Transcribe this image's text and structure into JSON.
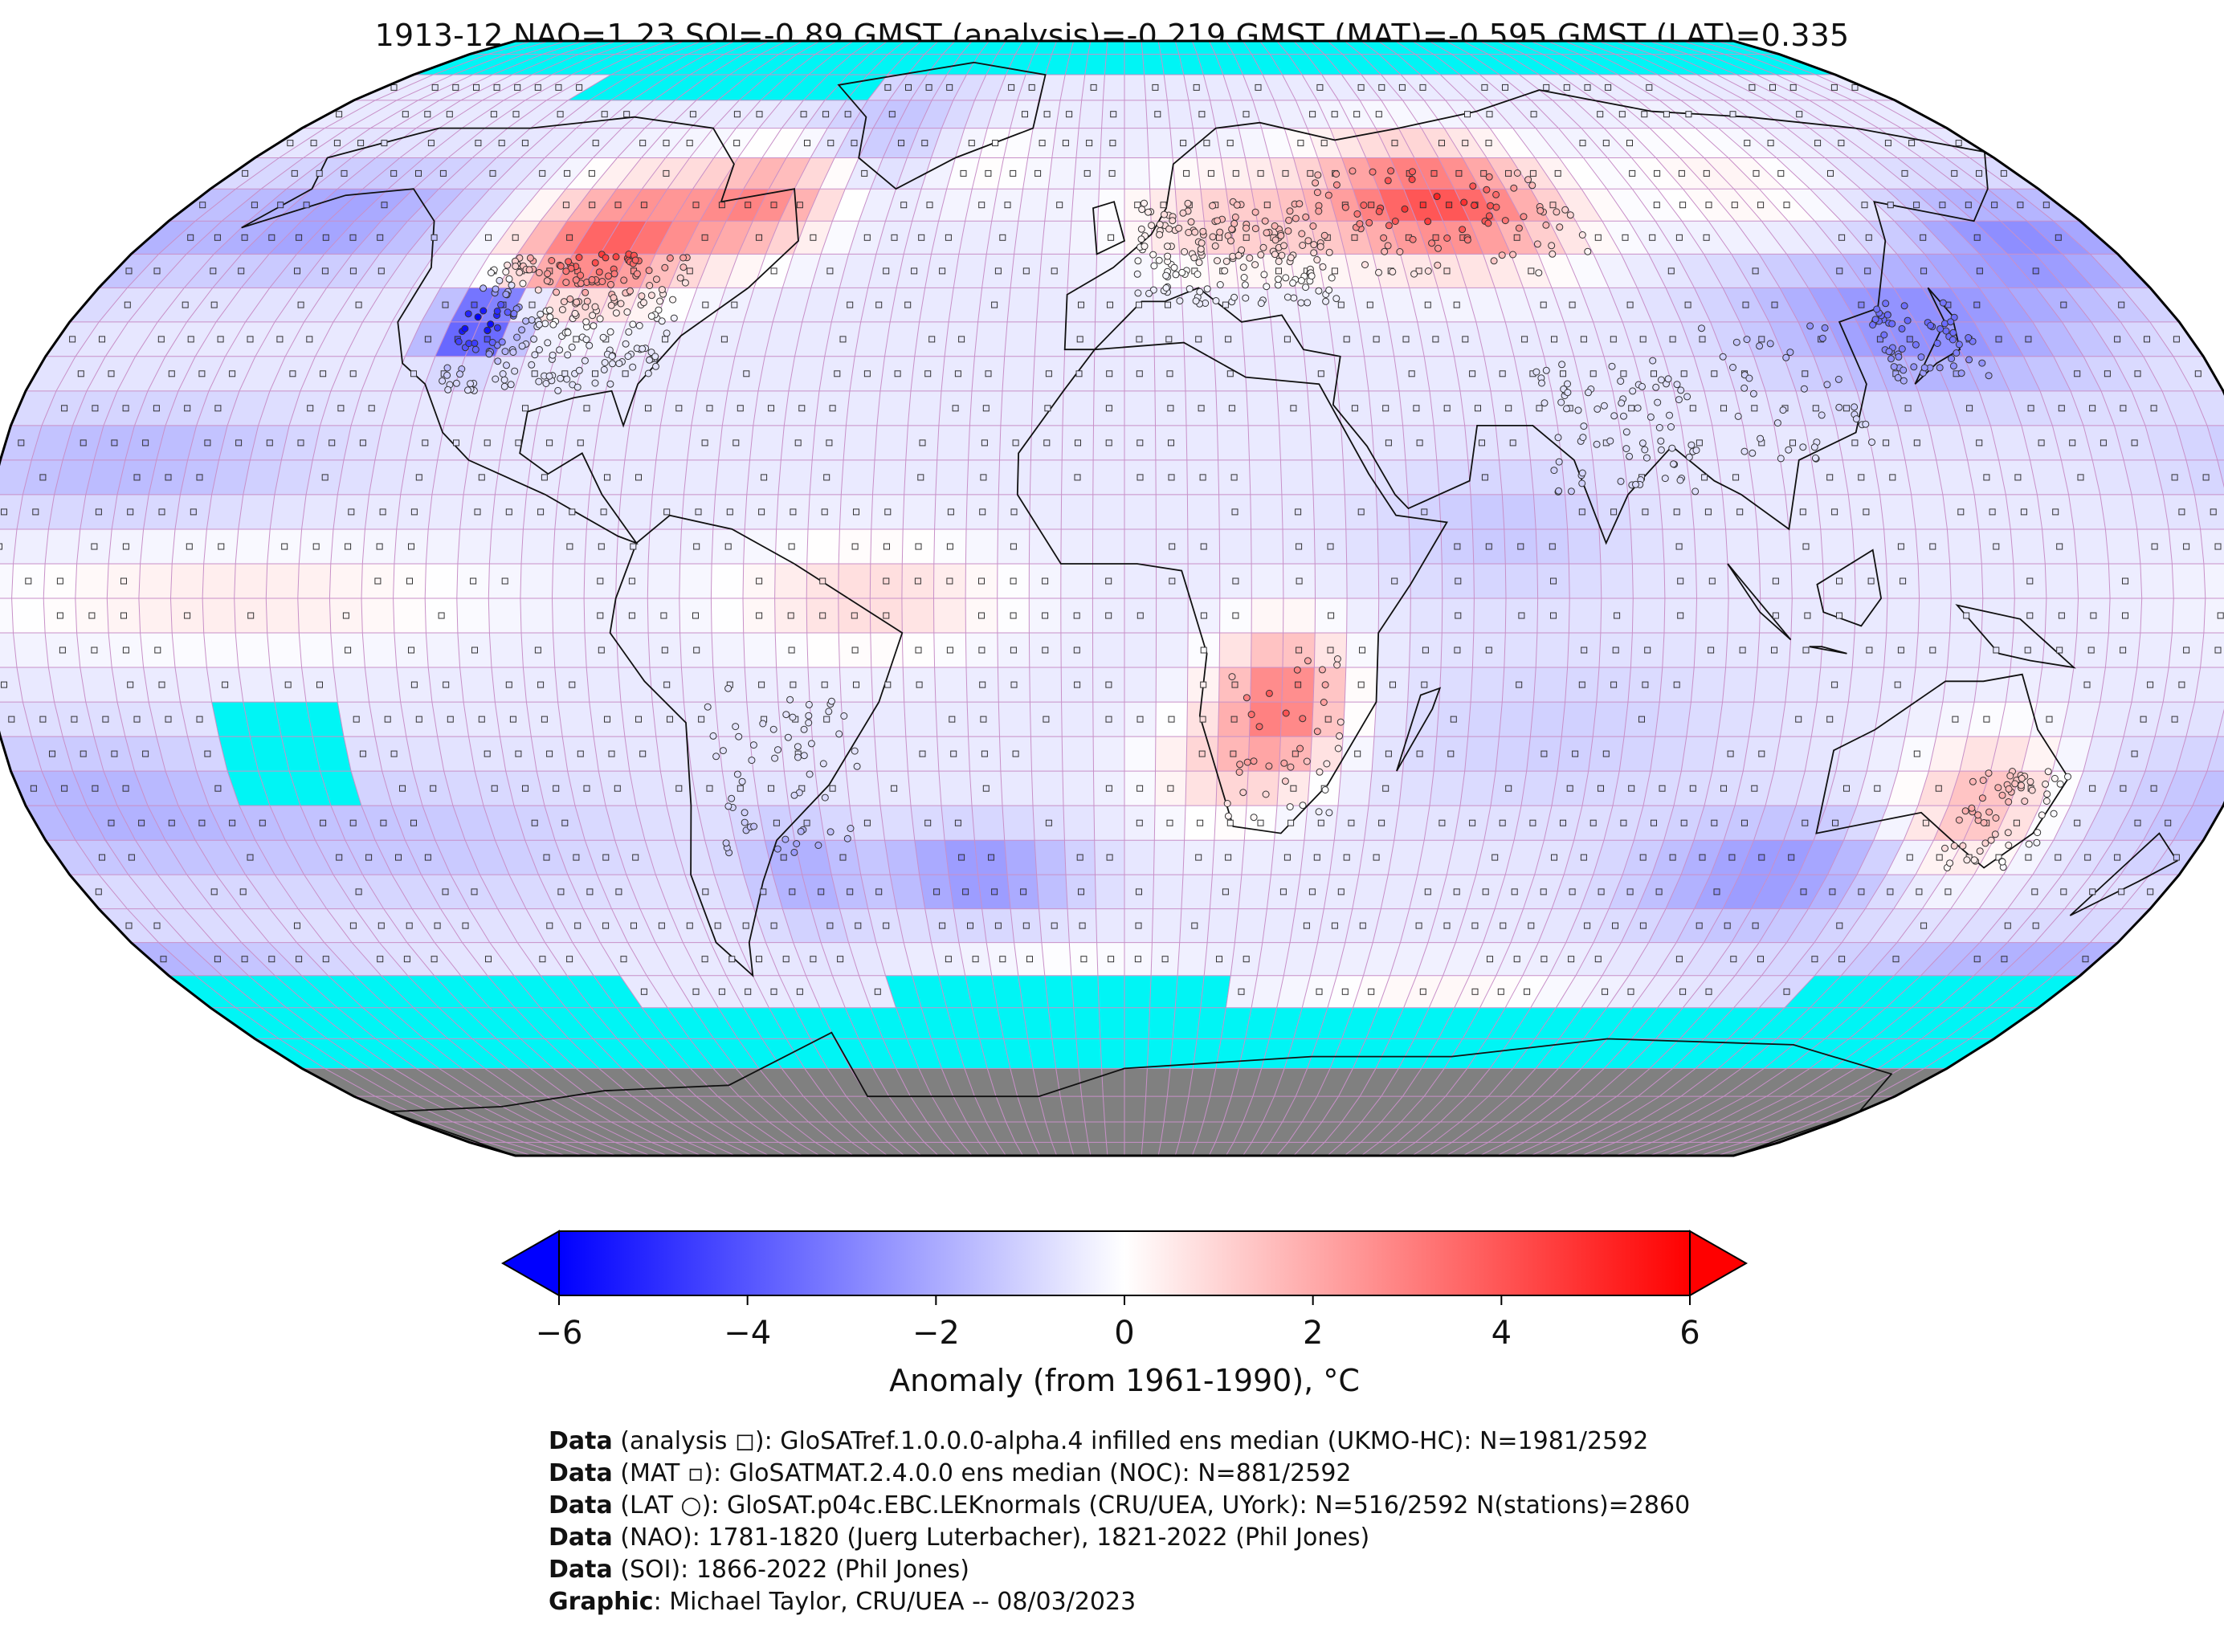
{
  "title": "1913-12 NAO=1.23 SOI=-0.89 GMST (analysis)=-0.219 GMST (MAT)=-0.595 GMST (LAT)=0.335",
  "colors": {
    "missing": "#00f5f5",
    "land_ice": "#808080",
    "cold_max": "#0000ff",
    "neutral": "#ffffff",
    "warm_max": "#ff0000",
    "grid_line": "#c890c8"
  },
  "map": {
    "projection": "Robinson",
    "grid_resolution_deg": 5,
    "marker_types": [
      "square",
      "small-square",
      "circle"
    ]
  },
  "colorbar": {
    "label": "Anomaly (from 1961-1990), °C",
    "min": -6,
    "max": 6,
    "ticks": [
      "−6",
      "−4",
      "−2",
      "0",
      "2",
      "4",
      "6"
    ],
    "tick_values": [
      -6,
      -4,
      -2,
      0,
      2,
      4,
      6
    ],
    "extend": "both"
  },
  "credits": [
    {
      "label": "Data",
      "text": " (analysis ◻): GloSATref.1.0.0.0-alpha.4 infilled ens median (UKMO-HC): N=1981/2592"
    },
    {
      "label": "Data",
      "text": " (MAT ▫): GloSATMAT.2.4.0.0 ens median (NOC): N=881/2592"
    },
    {
      "label": "Data",
      "text": " (LAT ○): GloSAT.p04c.EBC.LEKnormals (CRU/UEA, UYork): N=516/2592 N(stations)=2860"
    },
    {
      "label": "Data",
      "text": " (NAO): 1781-1820 (Juerg Luterbacher), 1821-2022 (Phil Jones)"
    },
    {
      "label": "Data",
      "text": " (SOI): 1866-2022 (Phil Jones)"
    },
    {
      "label": "Graphic",
      "text": ": Michael Taylor, CRU/UEA -- 08/03/2023"
    }
  ]
}
